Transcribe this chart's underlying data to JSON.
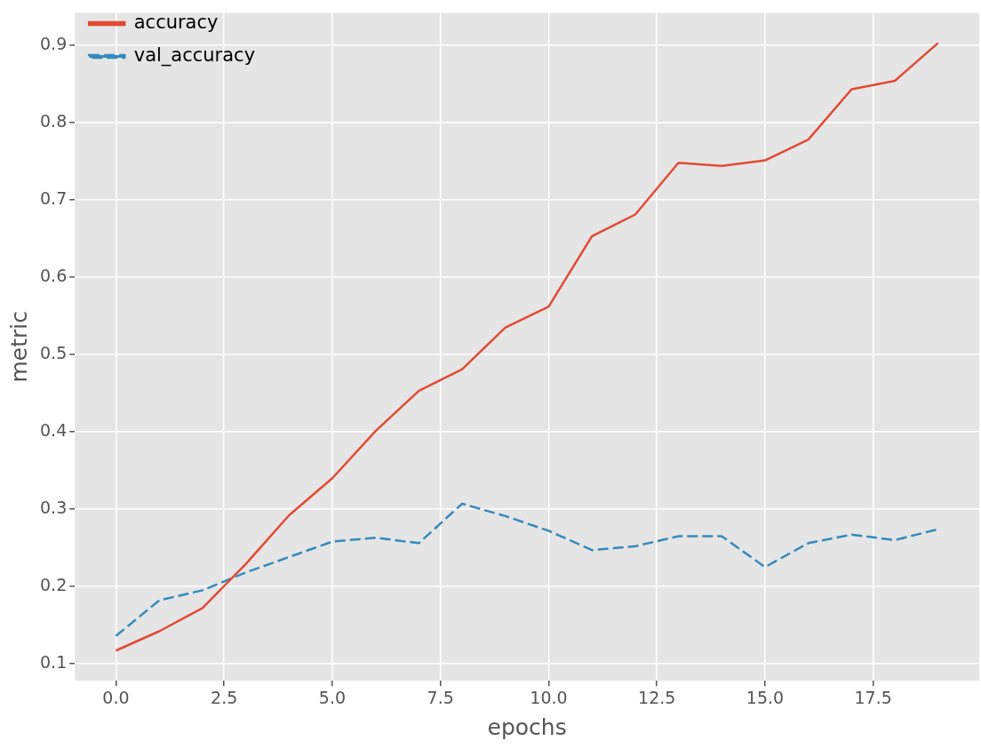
{
  "chart_data": {
    "type": "line",
    "xlabel": "epochs",
    "ylabel": "metric",
    "x": [
      0,
      1,
      2,
      3,
      4,
      5,
      6,
      7,
      8,
      9,
      10,
      11,
      12,
      13,
      14,
      15,
      16,
      17,
      18,
      19
    ],
    "series": [
      {
        "name": "accuracy",
        "color": "#e24a33",
        "line_style": "solid",
        "values": [
          0.117,
          0.142,
          0.172,
          0.229,
          0.292,
          0.34,
          0.401,
          0.453,
          0.481,
          0.535,
          0.562,
          0.653,
          0.681,
          0.748,
          0.744,
          0.751,
          0.778,
          0.843,
          0.854,
          0.903
        ]
      },
      {
        "name": "val_accuracy",
        "color": "#348abd",
        "line_style": "dashed",
        "values": [
          0.136,
          0.182,
          0.195,
          0.218,
          0.238,
          0.258,
          0.263,
          0.256,
          0.307,
          0.291,
          0.272,
          0.247,
          0.252,
          0.265,
          0.265,
          0.225,
          0.256,
          0.267,
          0.26,
          0.274
        ]
      }
    ],
    "xlim": [
      -0.95,
      19.95
    ],
    "xticks": [
      {
        "value": 0,
        "label": "0.0"
      },
      {
        "value": 2.5,
        "label": "2.5"
      },
      {
        "value": 5,
        "label": "5.0"
      },
      {
        "value": 7.5,
        "label": "7.5"
      },
      {
        "value": 10,
        "label": "10.0"
      },
      {
        "value": 12.5,
        "label": "12.5"
      },
      {
        "value": 15,
        "label": "15.0"
      },
      {
        "value": 17.5,
        "label": "17.5"
      }
    ],
    "ylim": [
      0.078,
      0.942
    ],
    "yticks": [
      0.1,
      0.2,
      0.3,
      0.4,
      0.5,
      0.6,
      0.7,
      0.8,
      0.9
    ],
    "grid": true,
    "legend": "top left",
    "marker": "none"
  }
}
